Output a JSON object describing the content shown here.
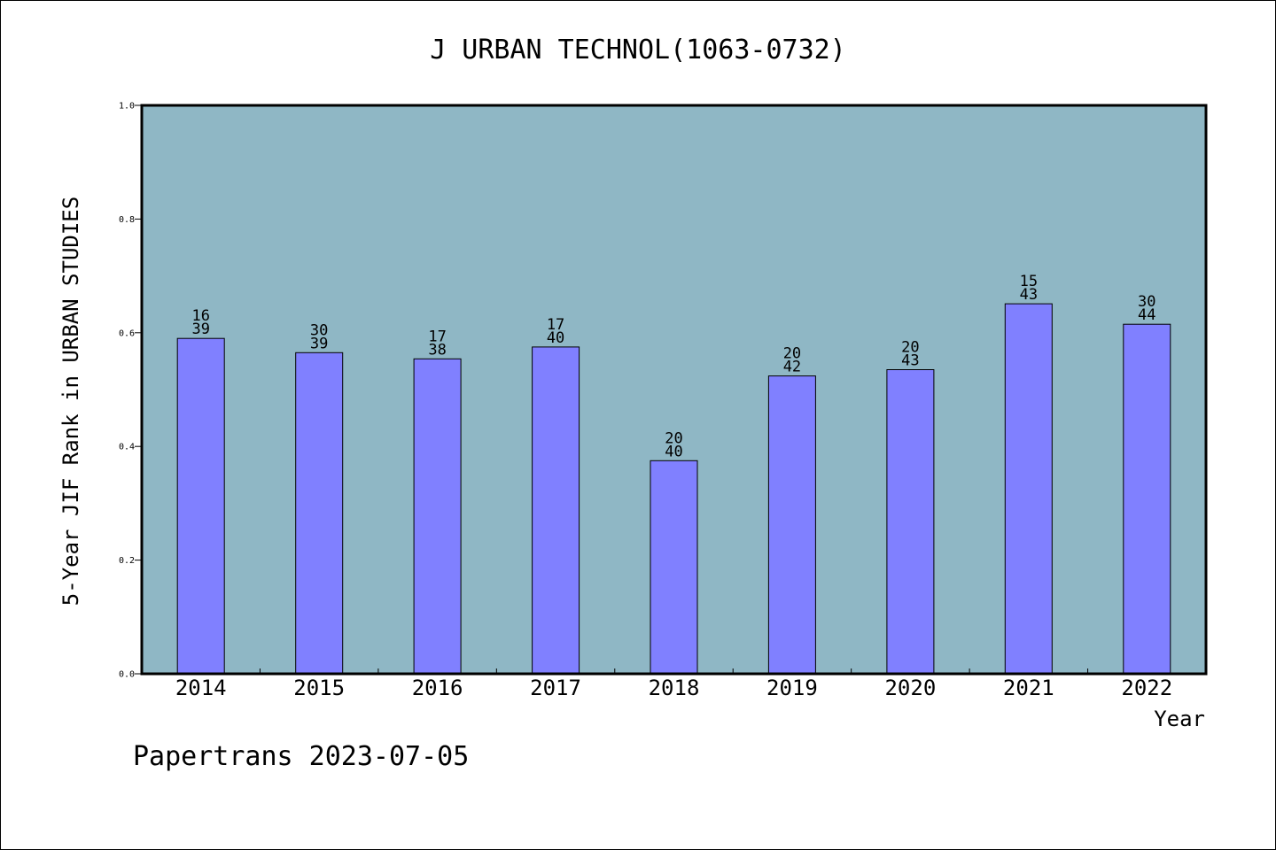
{
  "chart_data": {
    "type": "bar",
    "title": "J URBAN TECHNOL(1063-0732)",
    "xlabel": "Year",
    "ylabel": "5-Year JIF Rank in URBAN STUDIES",
    "ylim": [
      0,
      1.0
    ],
    "yticks": [
      "0.0",
      "0.2",
      "0.4",
      "0.6",
      "0.8",
      "1.0"
    ],
    "grid": false,
    "legend": "none",
    "categories": [
      "2014",
      "2015",
      "2016",
      "2017",
      "2018",
      "2019",
      "2020",
      "2021",
      "2022"
    ],
    "values": [
      0.59,
      0.565,
      0.554,
      0.575,
      0.375,
      0.524,
      0.535,
      0.651,
      0.615
    ],
    "labels_top": [
      "16",
      "30",
      "17",
      "17",
      "20",
      "20",
      "20",
      "15",
      "30"
    ],
    "labels_bottom": [
      "39",
      "39",
      "38",
      "40",
      "40",
      "42",
      "43",
      "43",
      "44"
    ],
    "colors": {
      "plot_background": "#8fb7c5",
      "bar_fill": "#8080ff",
      "bar_stroke": "#000000"
    }
  },
  "footer": {
    "credit": "Papertrans 2023-07-05"
  }
}
